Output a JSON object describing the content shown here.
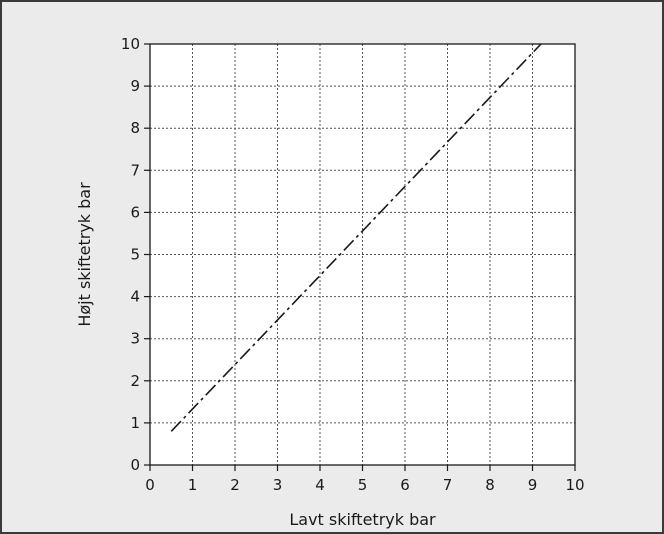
{
  "chart_data": {
    "type": "line",
    "xlabel": "Lavt skiftetryk bar",
    "ylabel": "Højt skiftetryk bar",
    "xlim": [
      0,
      10
    ],
    "ylim": [
      0,
      10
    ],
    "x_ticks": [
      "0",
      "1",
      "2",
      "3",
      "4",
      "5",
      "6",
      "7",
      "8",
      "9",
      "10"
    ],
    "y_ticks": [
      "0",
      "1",
      "2",
      "3",
      "4",
      "5",
      "6",
      "7",
      "8",
      "9",
      "10"
    ],
    "grid": true,
    "line_style": "dash-dot",
    "colors": {
      "line": "#1a1a1a",
      "grid": "#555555",
      "background": "#ebebeb",
      "plot_area": "#ffffff"
    },
    "series": [
      {
        "x": [
          0.5,
          9.2
        ],
        "y": [
          0.8,
          10.0
        ]
      }
    ]
  }
}
